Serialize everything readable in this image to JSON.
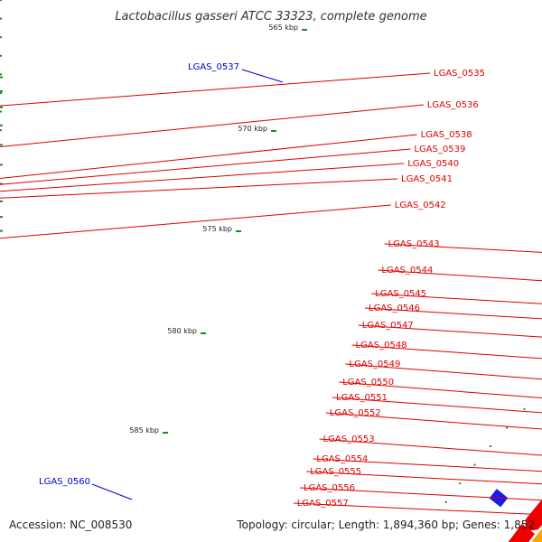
{
  "title": "Lactobacillus gasseri ATCC 33323, complete genome",
  "footer": {
    "accession": "Accession: NC_008530",
    "topology": "Topology: circular; Length: 1,894,360 bp; Genes: 1,852"
  },
  "scale_labels": [
    "565 kbp",
    "570 kbp",
    "575 kbp",
    "580 kbp",
    "585 kbp"
  ],
  "colors": {
    "forward_gene": "#ee0000",
    "reverse_gene": "#1a1aee",
    "axis": "#888888",
    "label_line_forward": "#dd0000",
    "label_line_reverse": "#0000cc",
    "gc_tick": "#228822"
  },
  "genes_forward": [
    "LGAS_0535",
    "LGAS_0536",
    "LGAS_0538",
    "LGAS_0539",
    "LGAS_0540",
    "LGAS_0541",
    "LGAS_0542",
    "LGAS_0543",
    "LGAS_0544",
    "LGAS_0545",
    "LGAS_0546",
    "LGAS_0547",
    "LGAS_0548",
    "LGAS_0549",
    "LGAS_0550",
    "LGAS_0551",
    "LGAS_0552",
    "LGAS_0553",
    "LGAS_0554",
    "LGAS_0555",
    "LGAS_0556",
    "LGAS_0557"
  ],
  "genes_reverse": [
    "LGAS_0537",
    "LGAS_0560"
  ]
}
